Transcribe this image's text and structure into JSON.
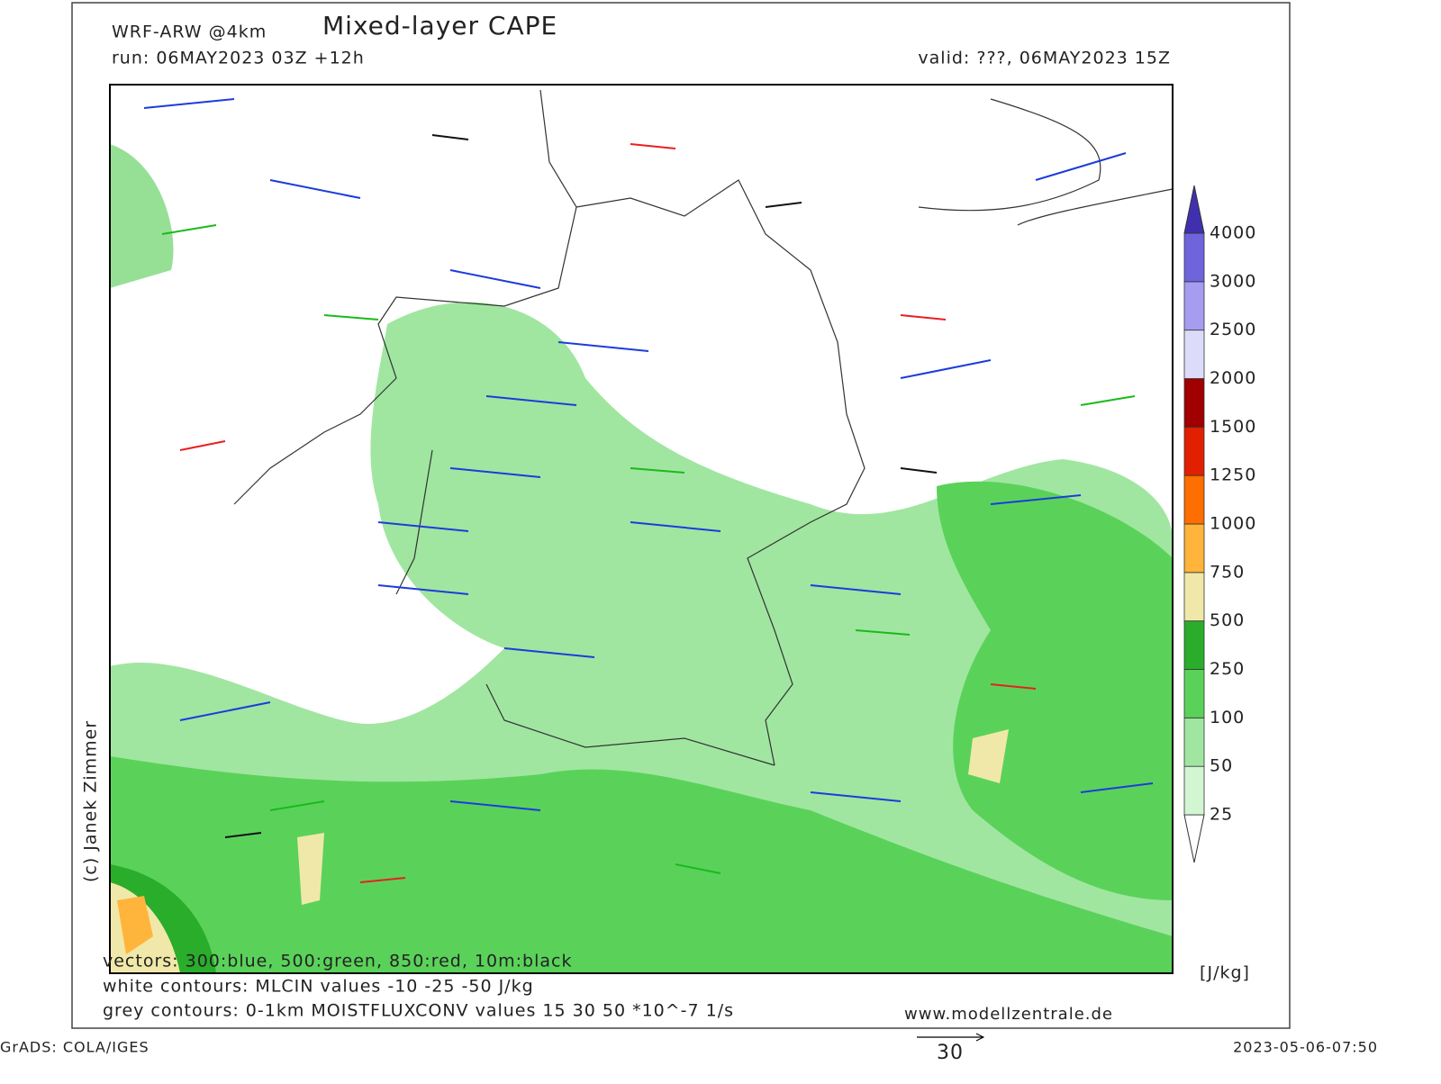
{
  "header": {
    "model": "WRF-ARW @4km",
    "title": "Mixed-layer CAPE",
    "run": "run: 06MAY2023 03Z +12h",
    "valid": "valid: ???, 06MAY2023 15Z"
  },
  "credit": "(c) Janek Zimmer",
  "legend": {
    "levels": [
      "25",
      "50",
      "100",
      "250",
      "500",
      "750",
      "1000",
      "1250",
      "1500",
      "2000",
      "2500",
      "3000",
      "4000"
    ],
    "colors": [
      "#ffffff",
      "#d2f5d2",
      "#a0e6a0",
      "#5ad25a",
      "#2aad2a",
      "#f0e8a8",
      "#ffb43c",
      "#ff6e00",
      "#e02000",
      "#a00000",
      "#dcdcfa",
      "#a69cf0",
      "#6e64dc",
      "#4030b0"
    ],
    "unit": "[J/kg]"
  },
  "notes": [
    "vectors: 300:blue, 500:green, 850:red, 10m:black",
    "white contours: MLCIN values -10 -25 -50 J/kg",
    "grey contours: 0-1km MOISTFLUXCONV values 15 30 50 *10^-7 1/s"
  ],
  "website": "www.modellzentrale.de",
  "scale_arrow": "30",
  "footer": {
    "left": "GrADS: COLA/IGES",
    "right": "2023-05-06-07:50"
  }
}
